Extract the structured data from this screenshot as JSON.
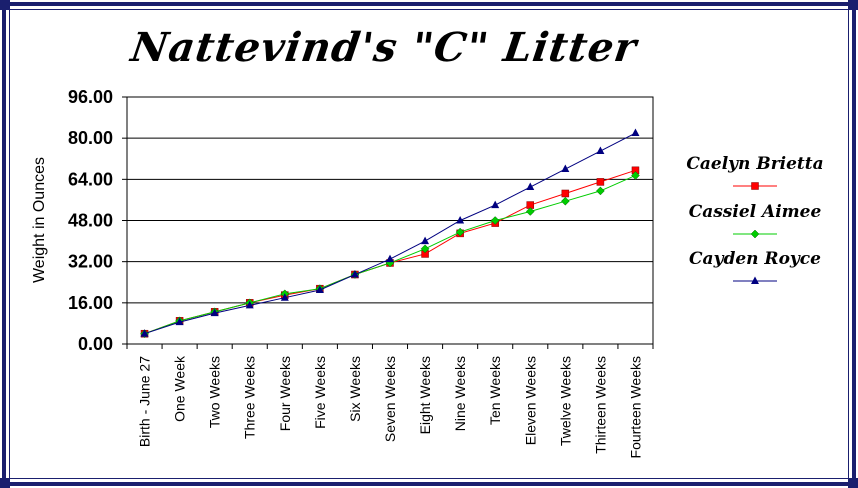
{
  "chart_data": {
    "type": "line",
    "title": "Nattevind's \"C\" Litter",
    "ylabel": "Weight in Ounces",
    "xlabel": "",
    "ylim": [
      0,
      96
    ],
    "yticks": [
      "0.00",
      "16.00",
      "32.00",
      "48.00",
      "64.00",
      "80.00",
      "96.00"
    ],
    "ytick_values": [
      0,
      16,
      32,
      48,
      64,
      80,
      96
    ],
    "categories": [
      "Birth - June 27",
      "One Week",
      "Two Weeks",
      "Three Weeks",
      "Four Weeks",
      "Five Weeks",
      "Six Weeks",
      "Seven Weeks",
      "Eight Weeks",
      "Nine Weeks",
      "Ten Weeks",
      "Eleven Weeks",
      "Twelve Weeks",
      "Thirteen Weeks",
      "Fourteen Weeks"
    ],
    "grid": "horizontal",
    "legend_position": "right",
    "series": [
      {
        "name": "Caelyn Brietta",
        "color": "#ff0000",
        "marker": "square",
        "values": [
          4,
          9,
          12.5,
          16,
          19,
          21.5,
          27,
          31.5,
          35,
          43,
          47,
          54,
          58.5,
          63,
          67.5
        ]
      },
      {
        "name": "Cassiel Aimee",
        "color": "#00cc00",
        "marker": "diamond",
        "values": [
          4,
          9,
          12.5,
          16,
          19.5,
          21.5,
          27,
          31.5,
          37,
          43.5,
          48,
          51.5,
          55.5,
          59.5,
          65.5
        ]
      },
      {
        "name": "Cayden Royce",
        "color": "#000080",
        "marker": "triangle",
        "values": [
          4,
          8.5,
          12,
          15,
          18,
          21,
          27,
          33,
          40,
          48,
          54,
          61,
          68,
          75,
          82
        ]
      }
    ]
  }
}
